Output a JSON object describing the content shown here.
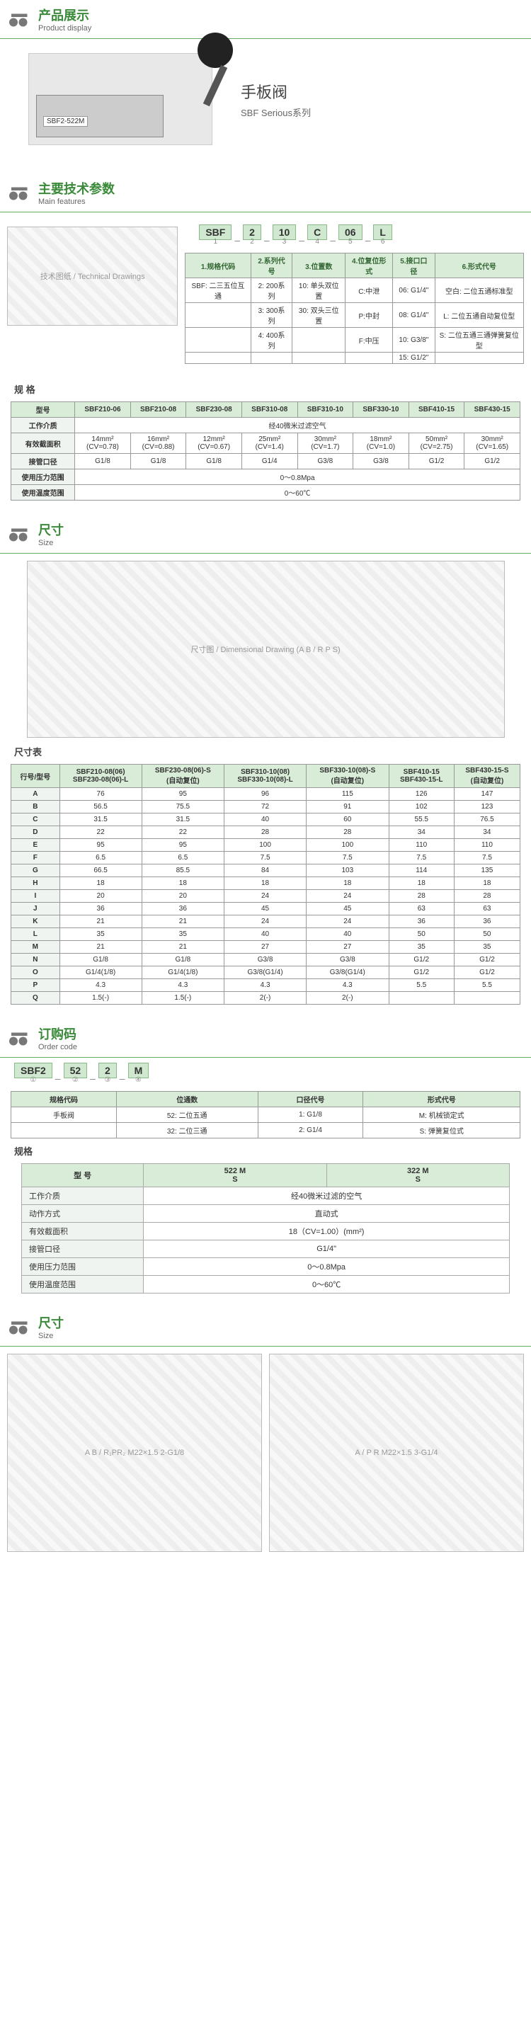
{
  "sections": {
    "product_display": {
      "zh": "产品展示",
      "en": "Product display"
    },
    "main_features": {
      "zh": "主要技术参数",
      "en": "Main features"
    },
    "size1": {
      "zh": "尺寸",
      "en": "Size"
    },
    "order_code": {
      "zh": "订购码",
      "en": "Order code"
    },
    "size2": {
      "zh": "尺寸",
      "en": "Size"
    }
  },
  "hero": {
    "name": "手板阀",
    "series": "SBF Serious系列",
    "product_label": "SBF2-522M"
  },
  "code_structure": {
    "segs": [
      "SBF",
      "2",
      "10",
      "C",
      "06",
      "L"
    ],
    "nums": [
      "1",
      "2",
      "3",
      "4",
      "5",
      "6"
    ],
    "headers": [
      "1.规格代码",
      "2.系列代号",
      "3.位置数",
      "4.位复位形式",
      "5.接口口径",
      "6.形式代号"
    ],
    "row1": [
      "SBF: 二三五位互通",
      "2: 200系列",
      "10: 单头双位置",
      "C:中泄",
      "06: G1/4\"",
      "空白: 二位五通标准型"
    ],
    "row2": [
      "",
      "3: 300系列",
      "30: 双头三位置",
      "P:中封",
      "08: G1/4\"",
      "L: 二位五通自动复位型"
    ],
    "row3": [
      "",
      "4: 400系列",
      "",
      "F:中压",
      "10: G3/8\"",
      "S: 二位五通三通弹簧复位型"
    ],
    "row4": [
      "",
      "",
      "",
      "",
      "15: G1/2\"",
      ""
    ]
  },
  "spec_models": {
    "title": "规  格",
    "header_models": [
      "型号",
      "SBF210-06",
      "SBF210-08",
      "SBF230-08",
      "SBF310-08",
      "SBF310-10",
      "SBF330-10",
      "SBF410-15",
      "SBF430-15"
    ],
    "rows": [
      [
        "工作介质",
        {
          "colspan": 8,
          "text": "经40微米过滤空气"
        }
      ],
      [
        "有效截面积",
        "14mm²\n(CV=0.78)",
        "16mm²\n(CV=0.88)",
        "12mm²\n(CV=0.67)",
        "25mm²\n(CV=1.4)",
        "30mm²\n(CV=1.7)",
        "18mm²\n(CV=1.0)",
        "50mm²\n(CV=2.75)",
        "30mm²\n(CV=1.65)"
      ],
      [
        "接管口径",
        "G1/8",
        "G1/8",
        "G1/8",
        "G1/4",
        "G3/8",
        "G3/8",
        "G1/2",
        "G1/2"
      ],
      [
        "使用压力范围",
        {
          "colspan": 8,
          "text": "0～0.8Mpa"
        }
      ],
      [
        "使用温度范围",
        {
          "colspan": 8,
          "text": "0～60℃"
        }
      ]
    ]
  },
  "size_table": {
    "title": "尺寸表",
    "row_header": "行号/型号",
    "cols": [
      "SBF210-08(06)\nSBF230-08(06)-L",
      "SBF230-08(06)-S\n(自动复位)",
      "SBF310-10(08)\nSBF330-10(08)-L",
      "SBF330-10(08)-S\n(自动复位)",
      "SBF410-15\nSBF430-15-L",
      "SBF430-15-S\n(自动复位)"
    ],
    "rows": [
      [
        "A",
        "76",
        "95",
        "96",
        "115",
        "126",
        "147"
      ],
      [
        "B",
        "56.5",
        "75.5",
        "72",
        "91",
        "102",
        "123"
      ],
      [
        "C",
        "31.5",
        "31.5",
        "40",
        "60",
        "55.5",
        "76.5"
      ],
      [
        "D",
        "22",
        "22",
        "28",
        "28",
        "34",
        "34"
      ],
      [
        "E",
        "95",
        "95",
        "100",
        "100",
        "110",
        "110"
      ],
      [
        "F",
        "6.5",
        "6.5",
        "7.5",
        "7.5",
        "7.5",
        "7.5"
      ],
      [
        "G",
        "66.5",
        "85.5",
        "84",
        "103",
        "114",
        "135"
      ],
      [
        "H",
        "18",
        "18",
        "18",
        "18",
        "18",
        "18"
      ],
      [
        "I",
        "20",
        "20",
        "24",
        "24",
        "28",
        "28"
      ],
      [
        "J",
        "36",
        "36",
        "45",
        "45",
        "63",
        "63"
      ],
      [
        "K",
        "21",
        "21",
        "24",
        "24",
        "36",
        "36"
      ],
      [
        "L",
        "35",
        "35",
        "40",
        "40",
        "50",
        "50"
      ],
      [
        "M",
        "21",
        "21",
        "27",
        "27",
        "35",
        "35"
      ],
      [
        "N",
        "G1/8",
        "G1/8",
        "G3/8",
        "G3/8",
        "G1/2",
        "G1/2"
      ],
      [
        "O",
        "G1/4(1/8)",
        "G1/4(1/8)",
        "G3/8(G1/4)",
        "G3/8(G1/4)",
        "G1/2",
        "G1/2"
      ],
      [
        "P",
        "4.3",
        "4.3",
        "4.3",
        "4.3",
        "5.5",
        "5.5"
      ],
      [
        "Q",
        "1.5(-)",
        "1.5(-)",
        "2(-)",
        "2(-)",
        "",
        ""
      ]
    ]
  },
  "order_code2": {
    "segs": [
      "SBF2",
      "52",
      "2",
      "M"
    ],
    "nums": [
      "①",
      "②",
      "③",
      "④"
    ],
    "table": {
      "headers": [
        "规格代码",
        "位通数",
        "口径代号",
        "形式代号"
      ],
      "rows": [
        [
          "手板阀",
          "52: 二位五通",
          "1: G1/8",
          "M: 机械锁定式"
        ],
        [
          "",
          "32: 二位三通",
          "2: G1/4",
          "S: 弹簧复位式"
        ]
      ]
    }
  },
  "spec_block": {
    "title": "规格",
    "model_label": "型  号",
    "model_a": "522",
    "model_b": "322",
    "ms": "M\nS",
    "rows": [
      [
        "工作介质",
        "经40微米过滤的空气"
      ],
      [
        "动作方式",
        "直动式"
      ],
      [
        "有效截面积",
        "18（CV=1.00）(mm²)"
      ],
      [
        "接管口径",
        "G1/4\""
      ],
      [
        "使用压力范围",
        "0～0.8Mpa"
      ],
      [
        "使用温度范围",
        "0～60℃"
      ]
    ]
  },
  "diagram_labels": {
    "main_features": "技术图纸 / Technical Drawings",
    "size1": "尺寸图 / Dimensional Drawing (A B / R P S)",
    "size2_left": "A B / R₁PR₂  M22×1.5  2-G1/8",
    "size2_right": "A / P R  M22×1.5  3-G1/4"
  },
  "colors": {
    "accent": "#3a8a3a",
    "th_bg": "#d8ecd8",
    "border": "#999999"
  }
}
